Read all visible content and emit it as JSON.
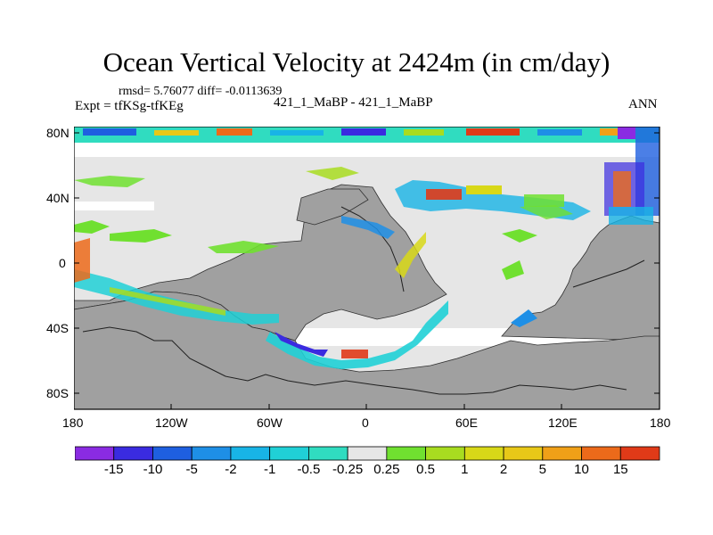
{
  "title": "Ocean Vertical Velocity at 2424m (in cm/day)",
  "stats": "rmsd= 5.76077 diff= -0.0113639",
  "experiment": "Expt = tfKSg-tfKEg",
  "center_label": "421_1_MaBP - 421_1_MaBP",
  "season": "ANN",
  "colors": {
    "land": "#a0a0a0",
    "near_zero": "#e6e6e6",
    "frame": "#000000"
  },
  "lat_ticks": [
    "80N",
    "40N",
    "0",
    "40S",
    "80S"
  ],
  "lon_ticks": [
    "180",
    "120W",
    "60W",
    "0",
    "60E",
    "120E",
    "180"
  ],
  "colorbar": {
    "boxes": [
      "#8a2be2",
      "#3a2be0",
      "#1e5fe0",
      "#1e8fe6",
      "#18b4e6",
      "#20d0d6",
      "#30dcc0",
      "#e6e6e6",
      "#70e030",
      "#a8dc20",
      "#d8d818",
      "#e8c818",
      "#f0a018",
      "#ec6a1a",
      "#e03a18"
    ],
    "labels": [
      "-15",
      "-10",
      "-5",
      "-2",
      "-1",
      "-0.5",
      "-0.25",
      "0.25",
      "0.5",
      "1",
      "2",
      "5",
      "10",
      "15"
    ]
  }
}
